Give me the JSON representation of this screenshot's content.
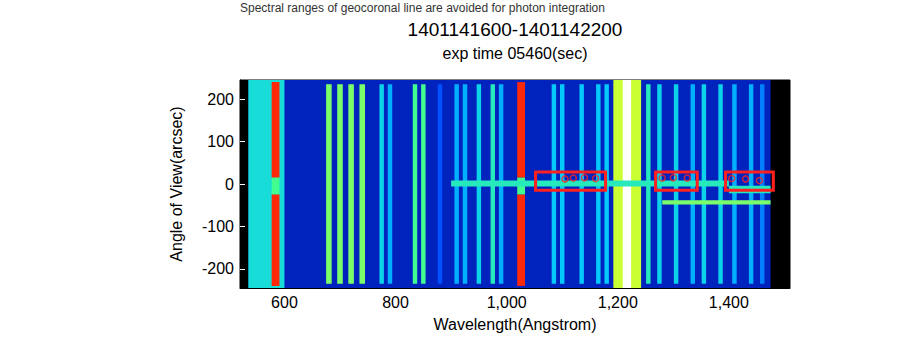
{
  "chart_data": {
    "type": "spectral_image",
    "title": "1401141600-1401142200",
    "subtitle": "exp time 05460(sec)",
    "annotations": [
      "Spectral ranges of geocoronal line are avoided for photon integration"
    ],
    "x_label": "Wavelength(Angstrom)",
    "y_label": "Angle of View(arcsec)",
    "xlim": [
      520,
      1510
    ],
    "xticks": [
      600,
      800,
      1000,
      1200,
      1400
    ],
    "ylim": [
      -245,
      245
    ],
    "yticks": [
      -200,
      -100,
      0,
      100,
      200
    ],
    "grid": false,
    "intensity_range": [
      0,
      1
    ],
    "bands": [
      {
        "x": [
          535,
          1475
        ],
        "y": [
          -245,
          245
        ],
        "intensity": 0.18
      },
      {
        "x": [
          535,
          600
        ],
        "y": [
          -245,
          245
        ],
        "intensity": 0.42
      },
      {
        "x": [
          577,
          591
        ],
        "y": [
          15,
          240
        ],
        "intensity": 0.88
      },
      {
        "x": [
          577,
          591
        ],
        "y": [
          -25,
          15
        ],
        "intensity": 0.5
      },
      {
        "x": [
          577,
          591
        ],
        "y": [
          -240,
          -25
        ],
        "intensity": 0.88
      },
      {
        "x": [
          675,
          685
        ],
        "y": [
          -235,
          235
        ],
        "intensity": 0.55
      },
      {
        "x": [
          695,
          705
        ],
        "y": [
          -235,
          235
        ],
        "intensity": 0.55
      },
      {
        "x": [
          715,
          725
        ],
        "y": [
          -235,
          235
        ],
        "intensity": 0.55
      },
      {
        "x": [
          735,
          745
        ],
        "y": [
          -235,
          235
        ],
        "intensity": 0.55
      },
      {
        "x": [
          771,
          779
        ],
        "y": [
          -235,
          235
        ],
        "intensity": 0.4
      },
      {
        "x": [
          786,
          794
        ],
        "y": [
          -235,
          235
        ],
        "intensity": 0.35
      },
      {
        "x": [
          831,
          839
        ],
        "y": [
          -235,
          235
        ],
        "intensity": 0.5
      },
      {
        "x": [
          846,
          854
        ],
        "y": [
          -235,
          235
        ],
        "intensity": 0.5
      },
      {
        "x": [
          876,
          884
        ],
        "y": [
          -235,
          235
        ],
        "intensity": 0.25
      },
      {
        "x": [
          906,
          914
        ],
        "y": [
          -235,
          235
        ],
        "intensity": 0.35
      },
      {
        "x": [
          921,
          929
        ],
        "y": [
          -235,
          235
        ],
        "intensity": 0.35
      },
      {
        "x": [
          946,
          954
        ],
        "y": [
          -235,
          235
        ],
        "intensity": 0.4
      },
      {
        "x": [
          971,
          979
        ],
        "y": [
          -235,
          235
        ],
        "intensity": 0.45
      },
      {
        "x": [
          986,
          994
        ],
        "y": [
          -235,
          235
        ],
        "intensity": 0.35
      },
      {
        "x": [
          1019,
          1033
        ],
        "y": [
          15,
          240
        ],
        "intensity": 0.88
      },
      {
        "x": [
          1019,
          1033
        ],
        "y": [
          -25,
          15
        ],
        "intensity": 0.5
      },
      {
        "x": [
          1019,
          1033
        ],
        "y": [
          -240,
          -25
        ],
        "intensity": 0.88
      },
      {
        "x": [
          1081,
          1089
        ],
        "y": [
          -235,
          235
        ],
        "intensity": 0.38
      },
      {
        "x": [
          1096,
          1104
        ],
        "y": [
          -235,
          235
        ],
        "intensity": 0.38
      },
      {
        "x": [
          1131,
          1139
        ],
        "y": [
          -235,
          235
        ],
        "intensity": 0.38
      },
      {
        "x": [
          1161,
          1169
        ],
        "y": [
          -235,
          235
        ],
        "intensity": 0.38
      },
      {
        "x": [
          1176,
          1184
        ],
        "y": [
          -235,
          235
        ],
        "intensity": 0.38
      },
      {
        "x": [
          1192,
          1242
        ],
        "y": [
          -245,
          245
        ],
        "intensity": 0.62
      },
      {
        "x": [
          1209,
          1224
        ],
        "y": [
          -245,
          245
        ],
        "intensity": 1.0
      },
      {
        "x": [
          1251,
          1259
        ],
        "y": [
          -235,
          235
        ],
        "intensity": 0.45
      },
      {
        "x": [
          1271,
          1279
        ],
        "y": [
          -235,
          235
        ],
        "intensity": 0.4
      },
      {
        "x": [
          1301,
          1309
        ],
        "y": [
          -235,
          235
        ],
        "intensity": 0.4
      },
      {
        "x": [
          1331,
          1339
        ],
        "y": [
          -235,
          235
        ],
        "intensity": 0.35
      },
      {
        "x": [
          1351,
          1359
        ],
        "y": [
          -235,
          235
        ],
        "intensity": 0.4
      },
      {
        "x": [
          1381,
          1389
        ],
        "y": [
          -235,
          235
        ],
        "intensity": 0.4
      },
      {
        "x": [
          1406,
          1414
        ],
        "y": [
          -235,
          235
        ],
        "intensity": 0.35
      },
      {
        "x": [
          1436,
          1444
        ],
        "y": [
          -235,
          235
        ],
        "intensity": 0.35
      },
      {
        "x": [
          1456,
          1464
        ],
        "y": [
          -235,
          235
        ],
        "intensity": 0.3
      },
      {
        "x": [
          900,
          1400
        ],
        "y": [
          -6,
          8
        ],
        "intensity": 0.45
      },
      {
        "x": [
          1400,
          1475
        ],
        "y": [
          -22,
          -4
        ],
        "intensity": 0.45
      },
      {
        "x": [
          1280,
          1475
        ],
        "y": [
          -48,
          -38
        ],
        "intensity": 0.55
      }
    ],
    "points": {
      "color": "#ff2020",
      "marker": "circle",
      "values": [
        [
          1105,
          12
        ],
        [
          1120,
          14
        ],
        [
          1140,
          15
        ],
        [
          1160,
          13
        ],
        [
          1280,
          14
        ],
        [
          1300,
          15
        ],
        [
          1325,
          14
        ],
        [
          1405,
          13
        ],
        [
          1430,
          12
        ],
        [
          1455,
          8
        ]
      ]
    },
    "boxes": {
      "color": "#ff2020",
      "values": [
        [
          1052,
          1178,
          -15,
          28
        ],
        [
          1268,
          1343,
          -15,
          28
        ],
        [
          1394,
          1480,
          -15,
          28
        ]
      ]
    }
  }
}
